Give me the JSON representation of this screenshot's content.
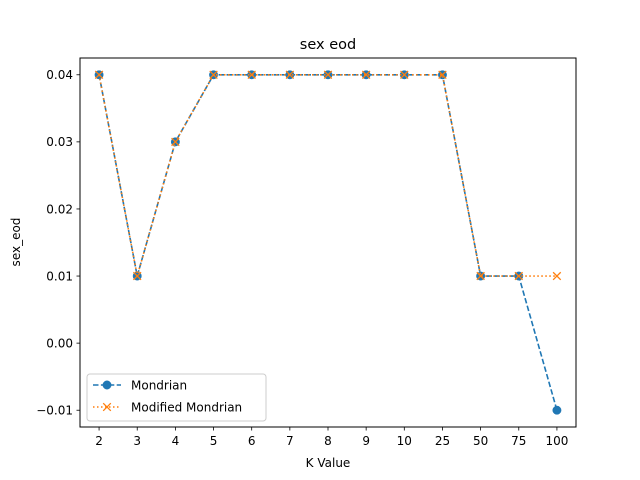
{
  "chart_data": {
    "type": "line",
    "title": "sex eod",
    "xlabel": "K Value",
    "ylabel": "sex_eod",
    "categories": [
      "2",
      "3",
      "4",
      "5",
      "6",
      "7",
      "8",
      "9",
      "10",
      "25",
      "50",
      "75",
      "100"
    ],
    "yticks": [
      -0.01,
      0.0,
      0.01,
      0.02,
      0.03,
      0.04
    ],
    "ytick_labels": [
      "−0.01",
      "0.00",
      "0.01",
      "0.02",
      "0.03",
      "0.04"
    ],
    "ylim": [
      -0.0125,
      0.0425
    ],
    "grid": false,
    "legend_position": "lower-left",
    "series": [
      {
        "name": "Mondrian",
        "values": [
          0.04,
          0.01,
          0.03,
          0.04,
          0.04,
          0.04,
          0.04,
          0.04,
          0.04,
          0.04,
          0.01,
          0.01,
          -0.01
        ],
        "color": "#1f77b4",
        "line_style": "dashed",
        "marker": "circle"
      },
      {
        "name": "Modified Mondrian",
        "values": [
          0.04,
          0.01,
          0.03,
          0.04,
          0.04,
          0.04,
          0.04,
          0.04,
          0.04,
          0.04,
          0.01,
          0.01,
          0.01
        ],
        "color": "#ff7f0e",
        "line_style": "dotted",
        "marker": "x"
      }
    ]
  }
}
